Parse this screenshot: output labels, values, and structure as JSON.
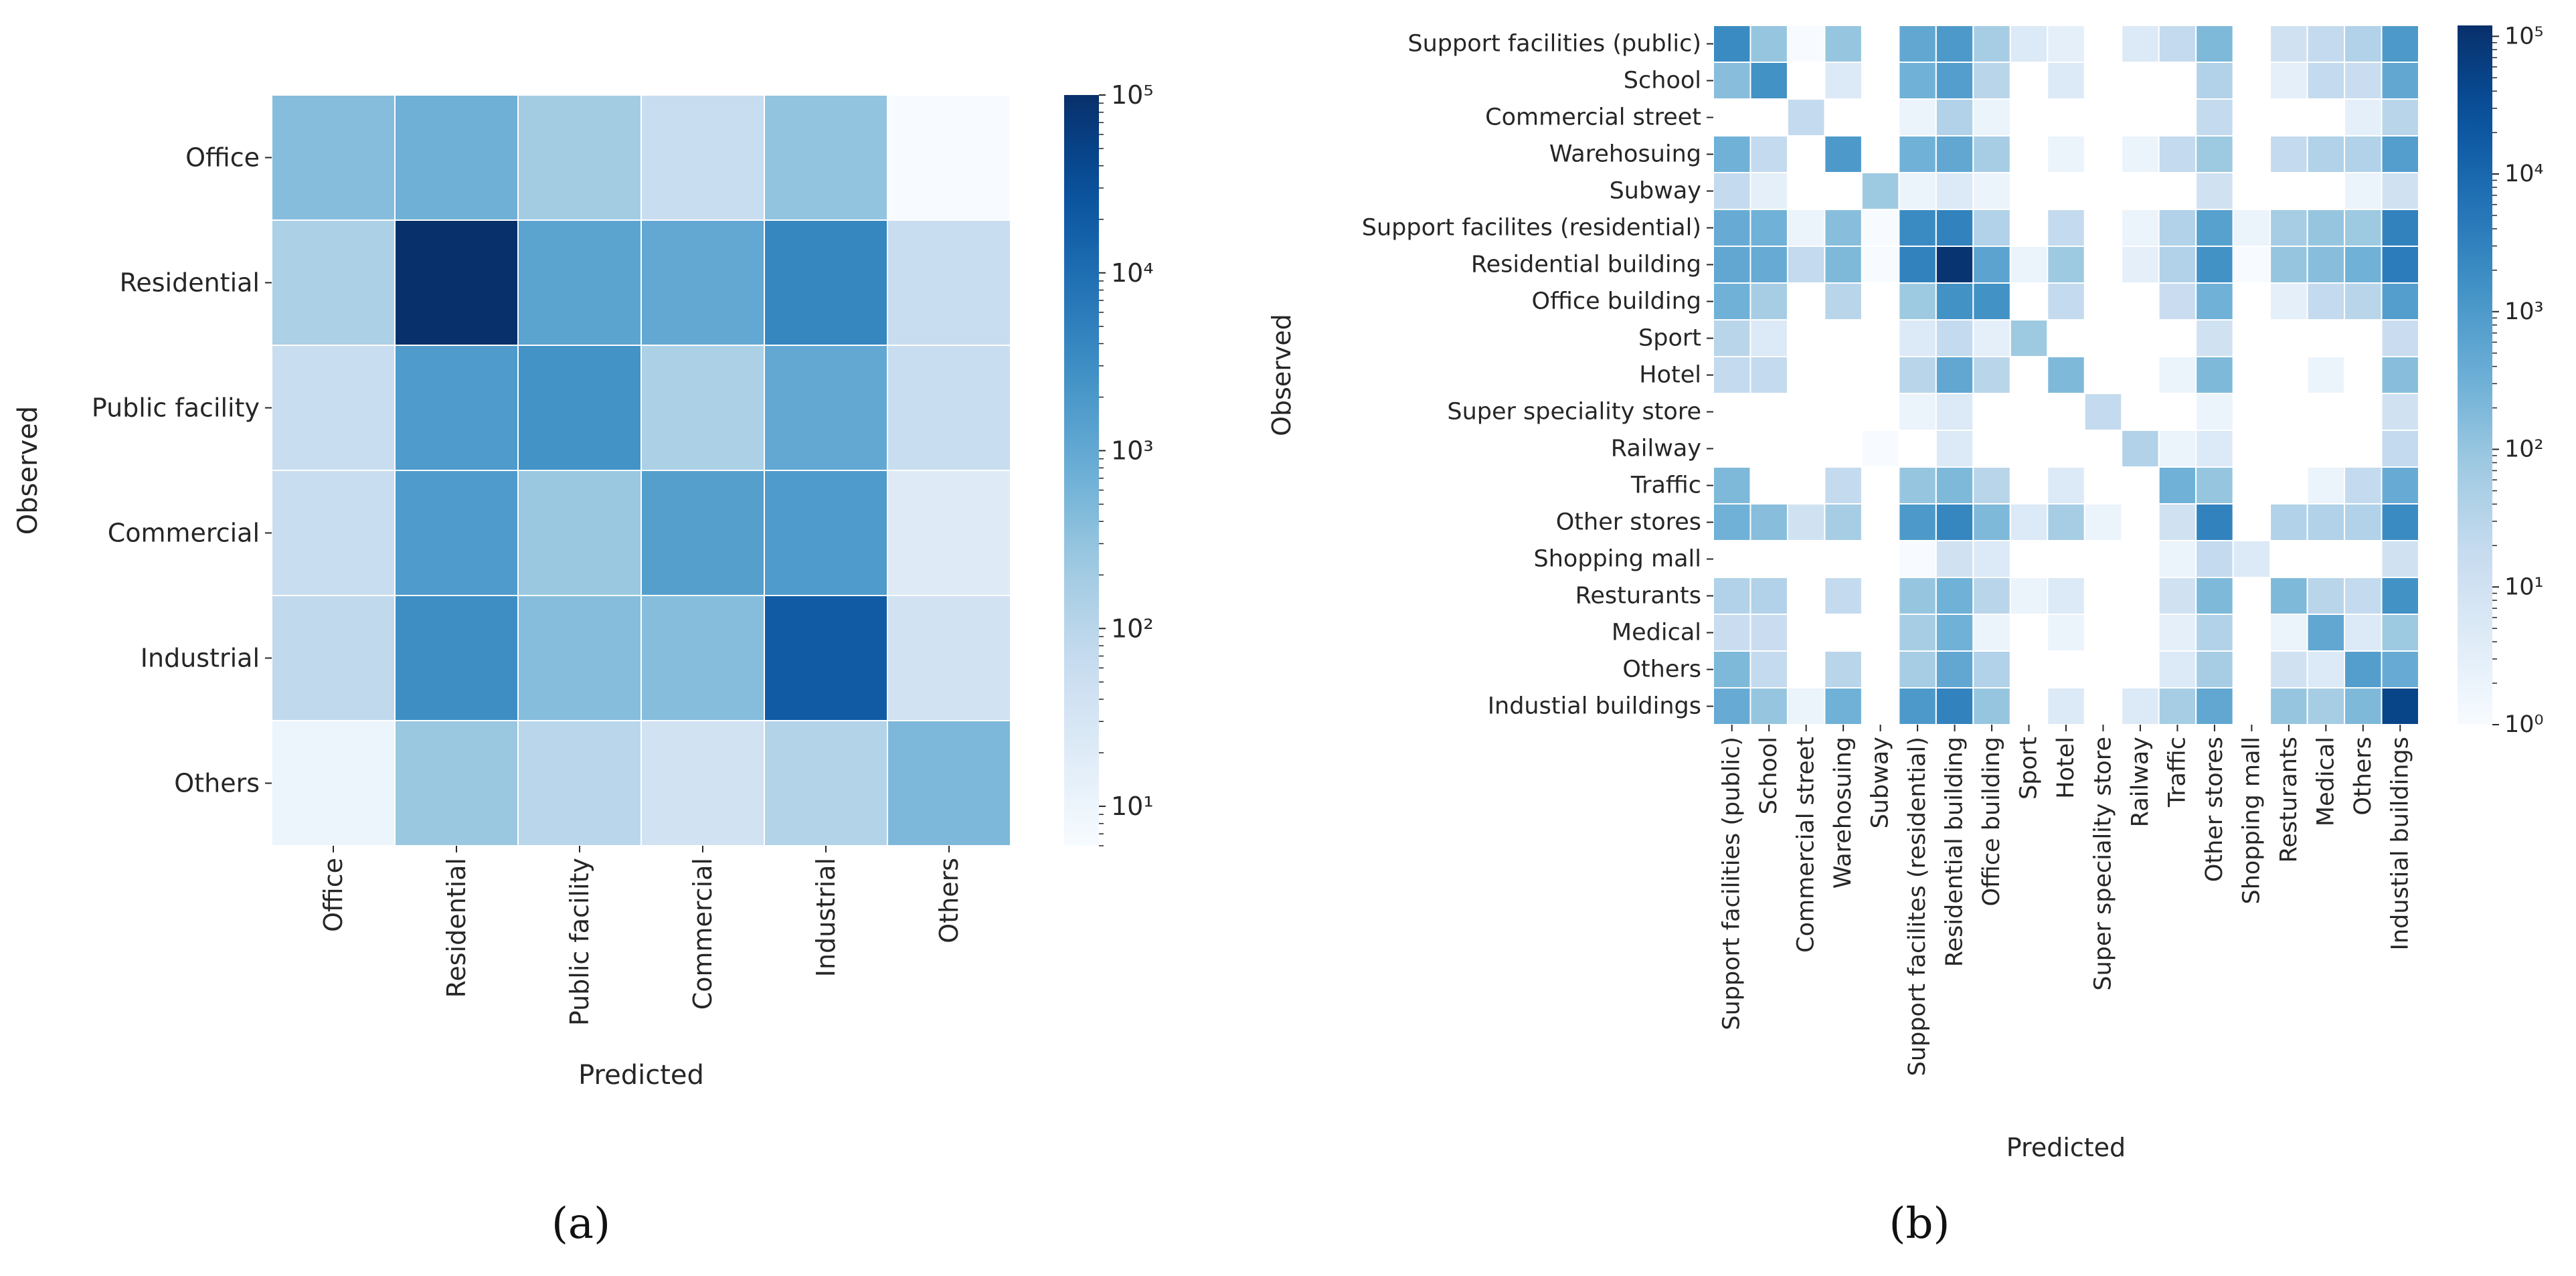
{
  "chart_data": [
    {
      "type": "heatmap",
      "panel_label": "(a)",
      "xlabel": "Predicted",
      "ylabel": "Observed",
      "rows": [
        "Office",
        "Residential",
        "Public facility",
        "Commercial",
        "Industrial",
        "Others"
      ],
      "columns": [
        "Office",
        "Residential",
        "Public facility",
        "Commercial",
        "Industrial",
        "Others"
      ],
      "values": [
        [
          400,
          700,
          200,
          60,
          300,
          5
        ],
        [
          150,
          100000,
          1200,
          1000,
          4000,
          60
        ],
        [
          60,
          1800,
          2500,
          150,
          1000,
          60
        ],
        [
          60,
          1800,
          250,
          1500,
          1800,
          20
        ],
        [
          80,
          3000,
          400,
          400,
          20000,
          40
        ],
        [
          10,
          250,
          100,
          40,
          120,
          500
        ]
      ],
      "colorbar": {
        "scale": "log",
        "range": [
          6,
          100000
        ],
        "tick_labels": [
          "10¹",
          "10²",
          "10³",
          "10⁴",
          "10⁵"
        ],
        "tick_values": [
          10,
          100,
          1000,
          10000,
          100000
        ]
      }
    },
    {
      "type": "heatmap",
      "panel_label": "(b)",
      "xlabel": "Predicted",
      "ylabel": "Observed",
      "rows": [
        "Support facilities (public)",
        "School",
        "Commercial street",
        "Warehosuing",
        "Subway",
        "Support facilites (residential)",
        "Residential building",
        "Office building",
        "Sport",
        "Hotel",
        "Super speciality store",
        "Railway",
        "Traffic",
        "Other stores",
        "Shopping mall",
        "Resturants",
        "Medical",
        "Others",
        "Industial buildings"
      ],
      "columns": [
        "Support facilities (public)",
        "School",
        "Commercial street",
        "Warehosuing",
        "Subway",
        "Support facilites (residential)",
        "Residential building",
        "Office building",
        "Sport",
        "Hotel",
        "Super speciality store",
        "Railway",
        "Traffic",
        "Other stores",
        "Shopping mall",
        "Resturants",
        "Medical",
        "Others",
        "Industial buildings"
      ],
      "values": [
        [
          2000,
          100,
          1,
          100,
          0,
          500,
          1000,
          60,
          5,
          3,
          0,
          5,
          20,
          200,
          0,
          10,
          20,
          40,
          1000
        ],
        [
          150,
          1500,
          0,
          5,
          0,
          300,
          800,
          30,
          0,
          5,
          0,
          0,
          0,
          40,
          0,
          3,
          20,
          15,
          500
        ],
        [
          0,
          0,
          20,
          0,
          0,
          2,
          40,
          2,
          0,
          0,
          0,
          0,
          0,
          20,
          0,
          0,
          0,
          3,
          30
        ],
        [
          300,
          20,
          0,
          1000,
          0,
          300,
          500,
          60,
          0,
          2,
          0,
          2,
          20,
          80,
          0,
          20,
          40,
          40,
          800
        ],
        [
          20,
          3,
          0,
          0,
          80,
          2,
          5,
          2,
          0,
          0,
          0,
          0,
          0,
          10,
          0,
          0,
          0,
          2,
          10
        ],
        [
          400,
          300,
          2,
          150,
          1,
          2000,
          3000,
          40,
          0,
          20,
          0,
          2,
          40,
          700,
          2,
          60,
          100,
          80,
          3000
        ],
        [
          500,
          400,
          20,
          200,
          1,
          3000,
          100000,
          600,
          2,
          80,
          0,
          3,
          40,
          1500,
          1,
          100,
          150,
          300,
          4000
        ],
        [
          300,
          60,
          0,
          30,
          0,
          80,
          1500,
          1500,
          0,
          20,
          0,
          0,
          15,
          300,
          0,
          3,
          20,
          30,
          800
        ],
        [
          30,
          5,
          0,
          0,
          0,
          5,
          20,
          3,
          80,
          0,
          0,
          0,
          0,
          10,
          0,
          0,
          0,
          0,
          15
        ],
        [
          20,
          20,
          0,
          0,
          0,
          30,
          500,
          30,
          0,
          200,
          0,
          0,
          2,
          200,
          0,
          0,
          2,
          0,
          150
        ],
        [
          0,
          0,
          0,
          0,
          0,
          2,
          5,
          0,
          0,
          0,
          20,
          0,
          0,
          2,
          0,
          0,
          0,
          0,
          10
        ],
        [
          0,
          0,
          0,
          0,
          1,
          0,
          5,
          0,
          0,
          0,
          0,
          40,
          2,
          5,
          0,
          0,
          0,
          0,
          20
        ],
        [
          200,
          0,
          0,
          20,
          0,
          100,
          200,
          30,
          0,
          5,
          0,
          0,
          300,
          100,
          0,
          0,
          2,
          20,
          400
        ],
        [
          300,
          150,
          10,
          60,
          0,
          1000,
          2500,
          200,
          5,
          60,
          2,
          0,
          10,
          3000,
          0,
          40,
          40,
          40,
          2000
        ],
        [
          0,
          0,
          0,
          0,
          0,
          1,
          10,
          5,
          0,
          0,
          0,
          0,
          2,
          20,
          5,
          0,
          0,
          0,
          10
        ],
        [
          40,
          40,
          0,
          20,
          0,
          100,
          300,
          30,
          2,
          5,
          0,
          0,
          10,
          200,
          0,
          200,
          30,
          20,
          1500
        ],
        [
          15,
          15,
          0,
          0,
          0,
          60,
          300,
          2,
          0,
          2,
          0,
          0,
          3,
          40,
          0,
          2,
          500,
          5,
          80
        ],
        [
          200,
          20,
          0,
          30,
          0,
          60,
          500,
          40,
          0,
          0,
          0,
          0,
          5,
          60,
          0,
          10,
          5,
          800,
          400
        ],
        [
          400,
          100,
          2,
          300,
          0,
          1000,
          3000,
          100,
          0,
          5,
          0,
          5,
          60,
          500,
          0,
          100,
          60,
          200,
          50000
        ]
      ],
      "colorbar": {
        "scale": "log",
        "range": [
          1,
          120000
        ],
        "tick_labels": [
          "10⁰",
          "10¹",
          "10²",
          "10³",
          "10⁴",
          "10⁵"
        ],
        "tick_values": [
          1,
          10,
          100,
          1000,
          10000,
          100000
        ]
      }
    }
  ],
  "colormap": [
    "#f7fbff",
    "#deebf7",
    "#c6dbef",
    "#9ecae1",
    "#6baed6",
    "#4292c6",
    "#2171b5",
    "#08519c",
    "#08306b"
  ]
}
